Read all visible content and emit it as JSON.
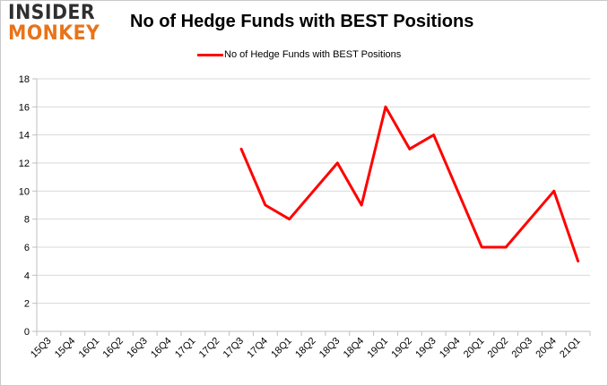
{
  "logo": {
    "line1": "INSIDER",
    "line2": "MONKEY"
  },
  "title": "No of Hedge Funds with BEST Positions",
  "colors": {
    "series": "#ff0000",
    "grid": "#d9d9d9",
    "axis": "#bfbfbf",
    "logo_accent": "#e8731a"
  },
  "chart_data": {
    "type": "line",
    "title": "No of Hedge Funds with BEST Positions",
    "xlabel": "",
    "ylabel": "",
    "categories": [
      "15Q3",
      "15Q4",
      "16Q1",
      "16Q2",
      "16Q3",
      "16Q4",
      "17Q1",
      "17Q2",
      "17Q3",
      "17Q4",
      "18Q1",
      "18Q2",
      "18Q3",
      "18Q4",
      "19Q1",
      "19Q2",
      "19Q3",
      "19Q4",
      "20Q1",
      "20Q2",
      "20Q3",
      "20Q4",
      "21Q1"
    ],
    "series": [
      {
        "name": "No of Hedge Funds with BEST Positions",
        "values": [
          null,
          null,
          null,
          null,
          null,
          null,
          null,
          null,
          13,
          9,
          8,
          10,
          12,
          9,
          16,
          13,
          14,
          10,
          6,
          6,
          8,
          10,
          5
        ]
      }
    ],
    "ylim": [
      0,
      18
    ],
    "yticks": [
      0,
      2,
      4,
      6,
      8,
      10,
      12,
      14,
      16,
      18
    ],
    "grid": "horizontal",
    "legend": "top-center"
  }
}
